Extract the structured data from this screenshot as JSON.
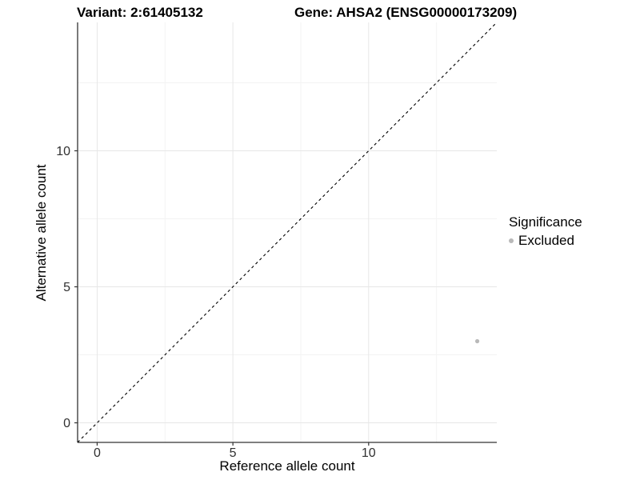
{
  "header": {
    "variant_title": "Variant: 2:61405132",
    "gene_title": "Gene: AHSA2 (ENSG00000173209)"
  },
  "chart_data": {
    "type": "scatter",
    "xlabel": "Reference allele count",
    "ylabel": "Alternative allele count",
    "xlim": [
      -0.72,
      14.72
    ],
    "ylim": [
      -0.72,
      14.72
    ],
    "x_major_ticks": [
      0,
      5,
      10
    ],
    "y_major_ticks": [
      0,
      5,
      10
    ],
    "x_minor_ticks": [
      2.5,
      7.5,
      12.5
    ],
    "y_minor_ticks": [
      2.5,
      7.5,
      12.5
    ],
    "grid": true,
    "legend_position": "right",
    "identity_line": {
      "slope": 1,
      "intercept": 0,
      "style": "dashed",
      "color": "#000000"
    },
    "series": [
      {
        "name": "Excluded",
        "color": "#b9b9b9",
        "point_radius": 2.6,
        "points": [
          [
            14,
            3
          ]
        ]
      }
    ]
  },
  "legend": {
    "title": "Significance",
    "items": [
      {
        "label": "Excluded",
        "color": "#b9b9b9"
      }
    ]
  },
  "colors": {
    "axis_line": "#333333",
    "tick_mark": "#333333",
    "grid_major": "#e7e7e7",
    "grid_minor": "#f3f3f3",
    "panel_background": "#ffffff"
  }
}
